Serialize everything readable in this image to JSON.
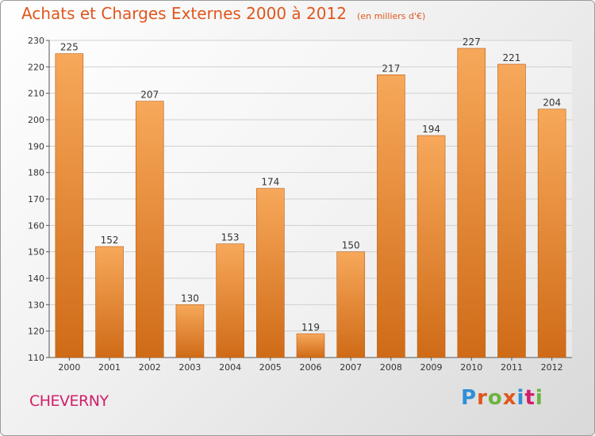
{
  "header": {
    "title": "Achats et Charges Externes 2000 à 2012",
    "unit": "(en milliers d'€)"
  },
  "footer": {
    "commune": "CHEVERNY",
    "brand": "Proxiti",
    "brand_colors": [
      "#2e8fd6",
      "#e0561c",
      "#6db33f",
      "#e0561c",
      "#2e8fd6",
      "#d01f6a",
      "#6db33f"
    ]
  },
  "colors": {
    "bar_top": "#f7a85a",
    "bar_bottom": "#cf6b17",
    "bar_edge": "#b95d12",
    "grid": "#cfcfcf",
    "title": "#e0561c",
    "commune": "#d01f6a"
  },
  "chart_data": {
    "type": "bar",
    "title": "Achats et Charges Externes 2000 à 2012",
    "xlabel": "",
    "ylabel": "",
    "categories": [
      "2000",
      "2001",
      "2002",
      "2003",
      "2004",
      "2005",
      "2006",
      "2007",
      "2008",
      "2009",
      "2010",
      "2011",
      "2012"
    ],
    "values": [
      225,
      152,
      207,
      130,
      153,
      174,
      119,
      150,
      217,
      194,
      227,
      221,
      204
    ],
    "ylim": [
      110,
      230
    ],
    "yticks": [
      110,
      120,
      130,
      140,
      150,
      160,
      170,
      180,
      190,
      200,
      210,
      220,
      230
    ],
    "grid": true,
    "legend": "none"
  }
}
